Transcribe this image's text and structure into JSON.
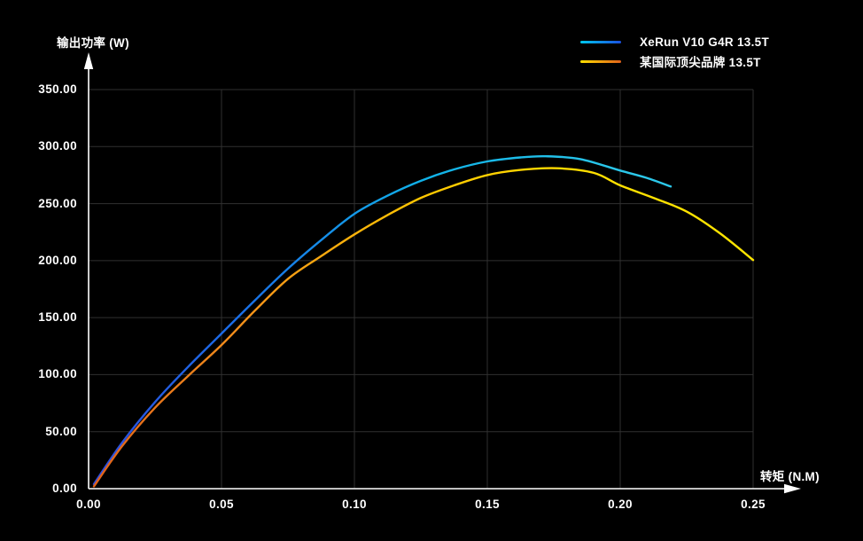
{
  "colors": {
    "background": "#000000",
    "grid": "#303030",
    "axis": "#ffffff",
    "text": "#ffffff"
  },
  "legend": {
    "items": [
      {
        "label": "XeRun V10 G4R 13.5T",
        "swatch_gradient": [
          "#00c8ee",
          "#1a50e0"
        ]
      },
      {
        "label": "某国际顶尖品牌 13.5T",
        "swatch_gradient": [
          "#ffdf00",
          "#e0611a"
        ]
      }
    ]
  },
  "chart_data": {
    "type": "line",
    "title": "",
    "xlabel": "转矩 (N.M)",
    "ylabel": "输出功率 (W)",
    "xlim": [
      0,
      0.25
    ],
    "ylim": [
      0,
      350
    ],
    "x_ticks": [
      "0.00",
      "0.05",
      "0.10",
      "0.15",
      "0.20",
      "0.25"
    ],
    "y_ticks": [
      "0.00",
      "50.00",
      "100.00",
      "150.00",
      "200.00",
      "250.00",
      "300.00",
      "350.00"
    ],
    "grid": true,
    "legend_position": "top-right",
    "series": [
      {
        "name": "XeRun V10 G4R 13.5T",
        "peak": {
          "x": 0.172,
          "y": 291.5
        },
        "stroke_gradient": [
          [
            0,
            "#2e4bdc"
          ],
          [
            0.22,
            "#1a6ee8"
          ],
          [
            0.5,
            "#10b2e8"
          ],
          [
            0.8,
            "#2cc8ea"
          ]
        ],
        "points": [
          [
            0.002,
            4
          ],
          [
            0.0125,
            40
          ],
          [
            0.025,
            76
          ],
          [
            0.0375,
            107
          ],
          [
            0.05,
            136
          ],
          [
            0.0625,
            165
          ],
          [
            0.075,
            193
          ],
          [
            0.0875,
            218
          ],
          [
            0.1,
            241
          ],
          [
            0.1125,
            257
          ],
          [
            0.125,
            270
          ],
          [
            0.1375,
            280
          ],
          [
            0.15,
            287
          ],
          [
            0.1625,
            290.5
          ],
          [
            0.172,
            291.5
          ],
          [
            0.185,
            289
          ],
          [
            0.2,
            279
          ],
          [
            0.21,
            272.5
          ],
          [
            0.219,
            265
          ]
        ]
      },
      {
        "name": "某国际顶尖品牌 13.5T",
        "peak": {
          "x": 0.176,
          "y": 281
        },
        "stroke_gradient": [
          [
            0,
            "#e0611a"
          ],
          [
            0.22,
            "#f28e1b"
          ],
          [
            0.5,
            "#ffc800"
          ],
          [
            0.75,
            "#ffdf00"
          ],
          [
            1,
            "#ffe600"
          ]
        ],
        "points": [
          [
            0.002,
            2
          ],
          [
            0.0125,
            37
          ],
          [
            0.025,
            71
          ],
          [
            0.0375,
            99
          ],
          [
            0.05,
            126
          ],
          [
            0.0625,
            156
          ],
          [
            0.075,
            184
          ],
          [
            0.0875,
            204
          ],
          [
            0.1,
            223
          ],
          [
            0.1125,
            240
          ],
          [
            0.125,
            255
          ],
          [
            0.1375,
            266
          ],
          [
            0.15,
            275
          ],
          [
            0.1625,
            279.5
          ],
          [
            0.176,
            281
          ],
          [
            0.19,
            277
          ],
          [
            0.2,
            266
          ],
          [
            0.2125,
            255
          ],
          [
            0.225,
            243
          ],
          [
            0.2375,
            224
          ],
          [
            0.25,
            200.5
          ]
        ]
      }
    ]
  }
}
